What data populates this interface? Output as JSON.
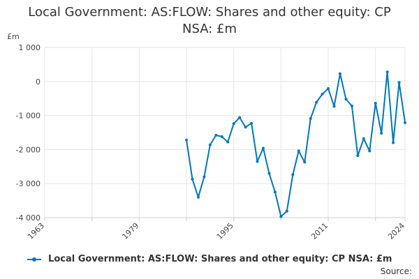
{
  "title_lines": [
    "Local Government: AS:FLOW: Shares and other equity: CP",
    "NSA: £m"
  ],
  "source_label": "Source:",
  "colors": {
    "series": "#0077b6",
    "grid": "#e6e6e6",
    "axis": "#cccccc"
  },
  "chart_data": {
    "type": "line",
    "title": "Local Government: AS:FLOW: Shares and other equity: CP NSA: £m",
    "ylabel": "£m",
    "xlim": [
      1963,
      2024
    ],
    "ylim": [
      -4000,
      1000
    ],
    "yticks": [
      1000,
      0,
      -1000,
      -2000,
      -3000,
      -4000
    ],
    "ytick_labels": [
      "1 000",
      "0",
      "-1 000",
      "-2 000",
      "-3 000",
      "-4 000"
    ],
    "xticks": [
      1963,
      1979,
      1995,
      2011,
      2024
    ],
    "xtick_labels": [
      "1963",
      "1979",
      "1995",
      "2011",
      "2024"
    ],
    "legend_position": "bottom",
    "series": [
      {
        "name": "Local Government: AS:FLOW: Shares and other equity: CP NSA: £m",
        "x": [
          1987,
          1988,
          1989,
          1990,
          1991,
          1992,
          1993,
          1994,
          1995,
          1996,
          1997,
          1998,
          1999,
          2000,
          2001,
          2002,
          2003,
          2004,
          2005,
          2006,
          2007,
          2008,
          2009,
          2010,
          2011,
          2012,
          2013,
          2014,
          2015,
          2016,
          2017,
          2018,
          2019,
          2020,
          2021,
          2022,
          2023,
          2024
        ],
        "values": [
          -1720,
          -2870,
          -3400,
          -2800,
          -1860,
          -1580,
          -1620,
          -1780,
          -1240,
          -1060,
          -1340,
          -1230,
          -2350,
          -1960,
          -2700,
          -3250,
          -3970,
          -3810,
          -2740,
          -2040,
          -2370,
          -1090,
          -610,
          -370,
          -210,
          -730,
          230,
          -520,
          -720,
          -2180,
          -1680,
          -2040,
          -640,
          -1520,
          280,
          -1800,
          -30,
          -1210
        ]
      }
    ]
  }
}
